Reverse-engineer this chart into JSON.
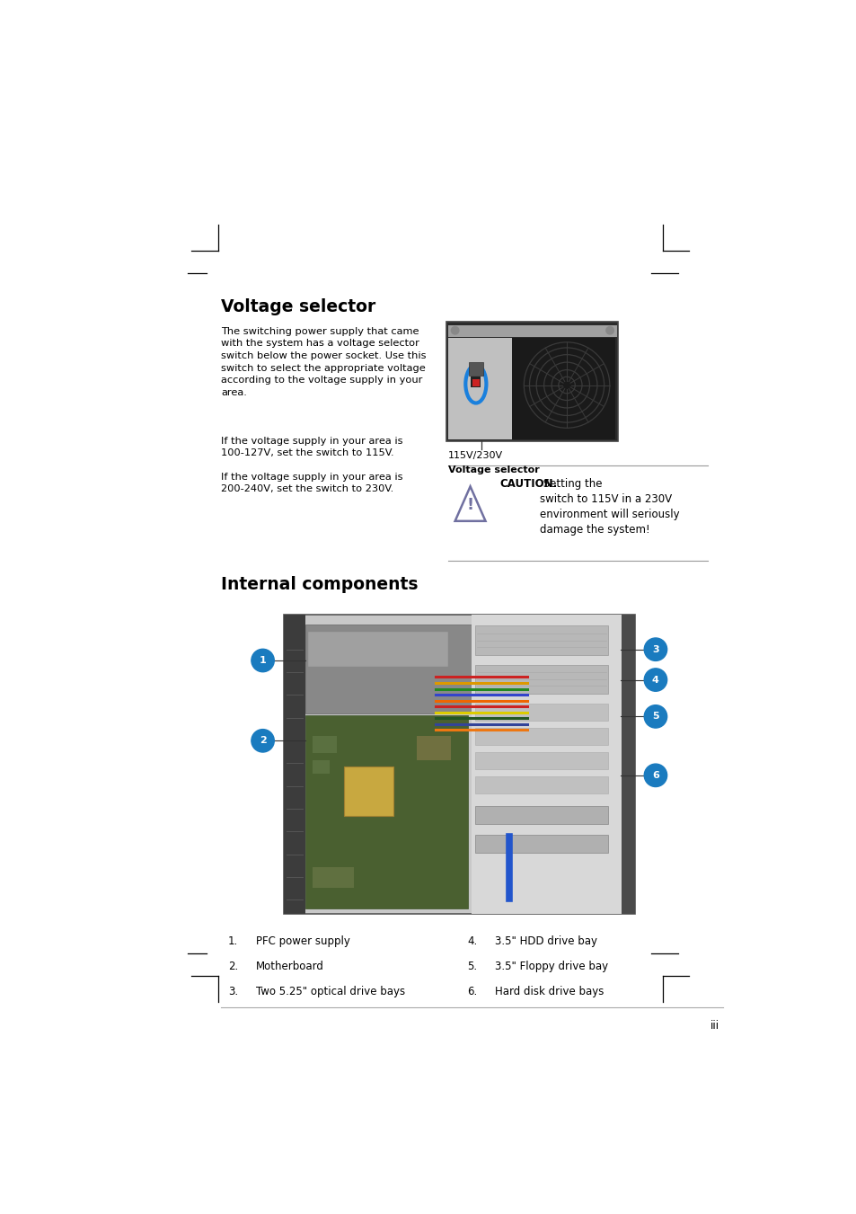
{
  "bg_color": "#ffffff",
  "page_width": 9.54,
  "page_height": 13.51,
  "dpi": 100,
  "section1_title": "Voltage selector",
  "section1_para1": "The switching power supply that came\nwith the system has a voltage selector\nswitch below the power socket. Use this\nswitch to select the appropriate voltage\naccording to the voltage supply in your\narea.",
  "section1_para2": "If the voltage supply in your area is\n100-127V, set the switch to 115V.",
  "section1_para3": "If the voltage supply in your area is\n200-240V, set the switch to 230V.",
  "img1_label_line1": "115V/230V",
  "img1_label_line2": "Voltage selector",
  "caution_bold": "CAUTION.",
  "caution_rest": " Setting the\nswitch to 115V in a 230V\nenvironment will seriously\ndamage the system!",
  "section2_title": "Internal components",
  "list_left": [
    [
      "1.",
      "PFC power supply"
    ],
    [
      "2.",
      "Motherboard"
    ],
    [
      "3.",
      "Two 5.25\" optical drive bays"
    ]
  ],
  "list_right": [
    [
      "4.",
      "3.5\" HDD drive bay"
    ],
    [
      "5.",
      "3.5\" Floppy drive bay"
    ],
    [
      "6.",
      "Hard disk drive bays"
    ]
  ],
  "page_number": "iii",
  "badge_color": "#1a7bbf",
  "text_color": "#000000"
}
